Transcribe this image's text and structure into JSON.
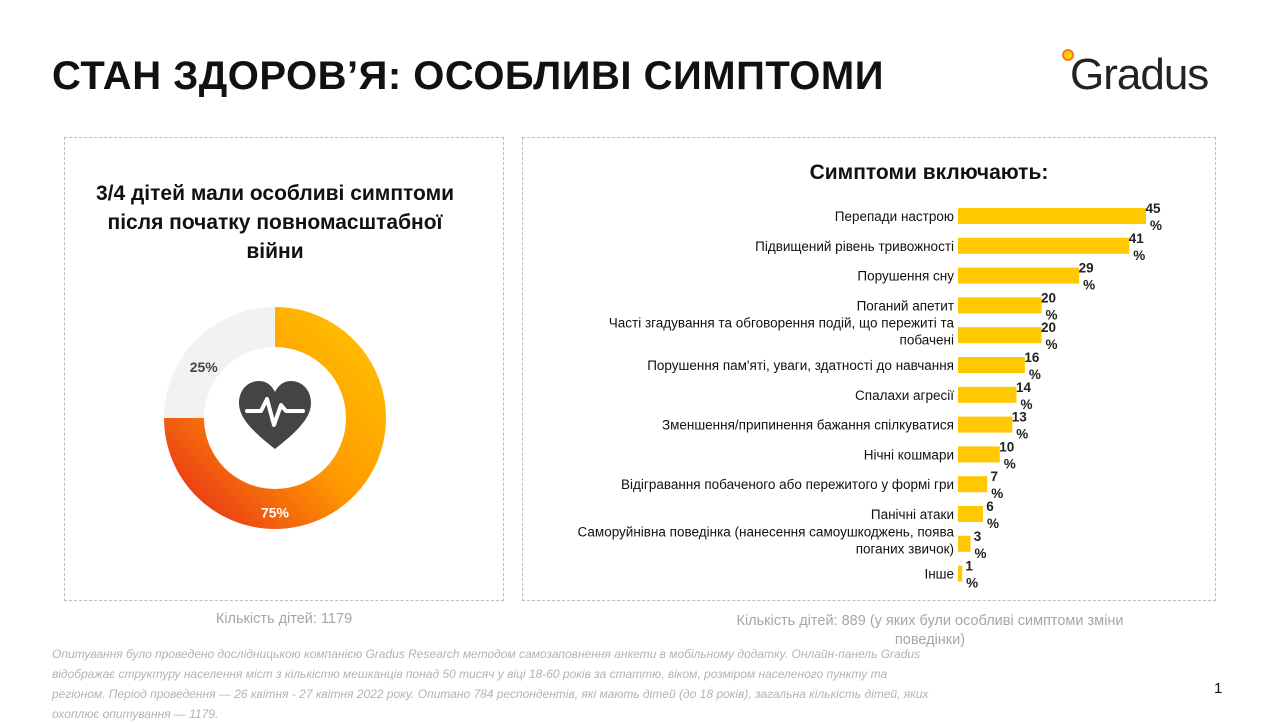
{
  "page": {
    "title": "СТАН ЗДОРОВ’Я: ОСОБЛИВІ СИМПТОМИ",
    "logo_text": "Gradus",
    "page_number": "1",
    "footnote": "Опитування було проведено дослідницькою компанією Gradus Research методом самозаповнення анкети в мобільному додатку. Онлайн-панель Gradus відображає структуру населення міст з кількістю мешканців понад 50 тисяч у віці 18-60 років за статтю, віком, розміром населеного пункту та регіоном. Період проведення — 26 квітня - 27 квітня 2022 року. Опитано 784 респондентів, які мають дітей (до 18 років), загальна кількість дітей, яких охоплює опитування — 1179."
  },
  "donut": {
    "heading": "3/4 дітей мали особливі симптоми після початку повномасштабної війни",
    "count_text": "Кількість дітей: 1179",
    "icon": "heart-pulse-icon"
  },
  "bars": {
    "heading": "Симптоми включають:",
    "count_text": "Кількість дітей: 889 (у яких були особливі симптоми зміни поведінки)"
  },
  "chart_data": [
    {
      "type": "pie",
      "categories": [
        "75%",
        "25%"
      ],
      "values": [
        75,
        25
      ],
      "colors": [
        "#ffc800",
        "#f2f2f2"
      ],
      "gradient": [
        "#ffc800",
        "#ff8a00",
        "#e41d1d"
      ]
    },
    {
      "type": "bar",
      "orientation": "horizontal",
      "categories": [
        "Перепади настрою",
        "Підвищений рівень  тривожності",
        "Порушення сну",
        "Поганий апетит",
        "Часті згадування та обговорення подій, що пережиті та побачені",
        "Порушення пам'яті, уваги, здатності до навчання",
        "Спалахи агресії",
        "Зменшення/припинення бажання спілкуватися",
        "Нічні кошмари",
        "Відігравання побаченого або пережитого у формі гри",
        "Панічні атаки",
        "Саморуйнівна поведінка (нанесення самоушкоджень, поява поганих звичок)",
        "Інше"
      ],
      "values": [
        45,
        41,
        29,
        20,
        20,
        16,
        14,
        13,
        10,
        7,
        6,
        3,
        1
      ],
      "unit": "%",
      "color": "#ffc800",
      "xlim": [
        0,
        45
      ]
    }
  ]
}
